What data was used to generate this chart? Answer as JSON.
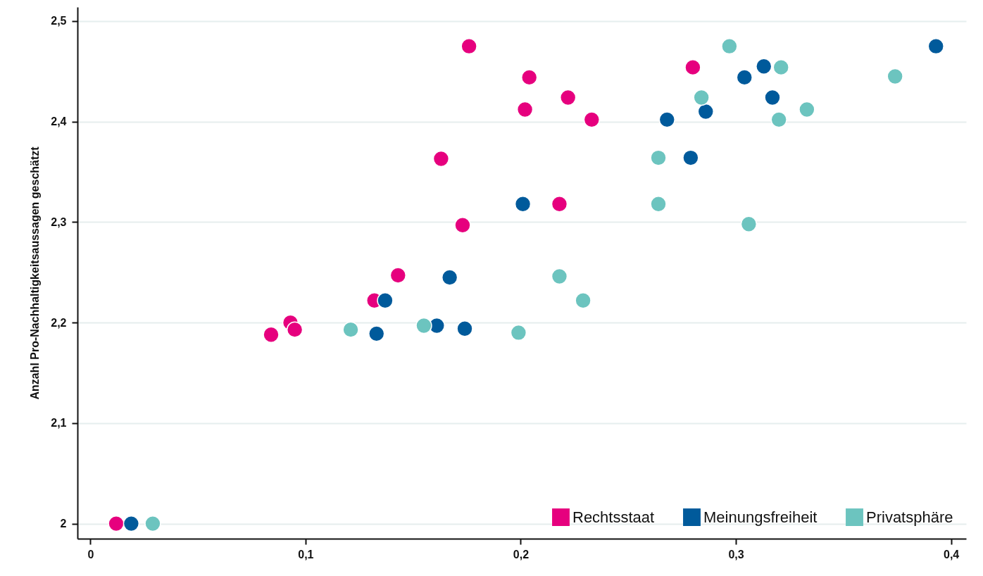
{
  "chart_data": {
    "type": "scatter",
    "ylabel": "Anzahl Pro-Nachhaltigkeitsaussagen geschätzt",
    "xlim": [
      -0.006,
      0.407
    ],
    "ylim": [
      1.985,
      2.514
    ],
    "xticks": [
      0,
      {
        "value": 0.1,
        "label": "0,1"
      },
      {
        "value": 0.2,
        "label": "0,2"
      },
      {
        "value": 0.3,
        "label": "0,3"
      },
      {
        "value": 0.4,
        "label": "0,4"
      }
    ],
    "yticks": [
      2,
      {
        "value": 2.1,
        "label": "2,1"
      },
      {
        "value": 2.2,
        "label": "2,2"
      },
      {
        "value": 2.3,
        "label": "2,3"
      },
      {
        "value": 2.4,
        "label": "2,4"
      },
      {
        "value": 2.5,
        "label": "2,5"
      }
    ],
    "grid": "y",
    "legend": "bottom right",
    "marker": "circle",
    "series": [
      {
        "name": "Rechtsstaat",
        "color": "#e6007e",
        "x": [
          0.012,
          0.084,
          0.093,
          0.095,
          0.132,
          0.143,
          0.163,
          0.173,
          0.176,
          0.202,
          0.204,
          0.218,
          0.222,
          0.233,
          0.28
        ],
        "values": [
          2.0,
          2.188,
          2.2,
          2.193,
          2.222,
          2.247,
          2.363,
          2.297,
          2.475,
          2.412,
          2.444,
          2.318,
          2.424,
          2.402,
          2.454
        ]
      },
      {
        "name": "Meinungsfreiheit",
        "color": "#005a9b",
        "x": [
          0.019,
          0.133,
          0.137,
          0.161,
          0.167,
          0.174,
          0.201,
          0.268,
          0.279,
          0.286,
          0.304,
          0.313,
          0.317,
          0.393
        ],
        "values": [
          2.0,
          2.189,
          2.222,
          2.197,
          2.245,
          2.194,
          2.318,
          2.402,
          2.364,
          2.41,
          2.444,
          2.455,
          2.424,
          2.475
        ]
      },
      {
        "name": "Privatsphäre",
        "color": "#6cc4bf",
        "x": [
          0.029,
          0.121,
          0.155,
          0.199,
          0.218,
          0.229,
          0.264,
          0.264,
          0.284,
          0.297,
          0.306,
          0.32,
          0.321,
          0.333,
          0.374
        ],
        "values": [
          2.0,
          2.193,
          2.197,
          2.19,
          2.246,
          2.222,
          2.364,
          2.318,
          2.424,
          2.475,
          2.298,
          2.402,
          2.454,
          2.412,
          2.445
        ]
      }
    ]
  }
}
